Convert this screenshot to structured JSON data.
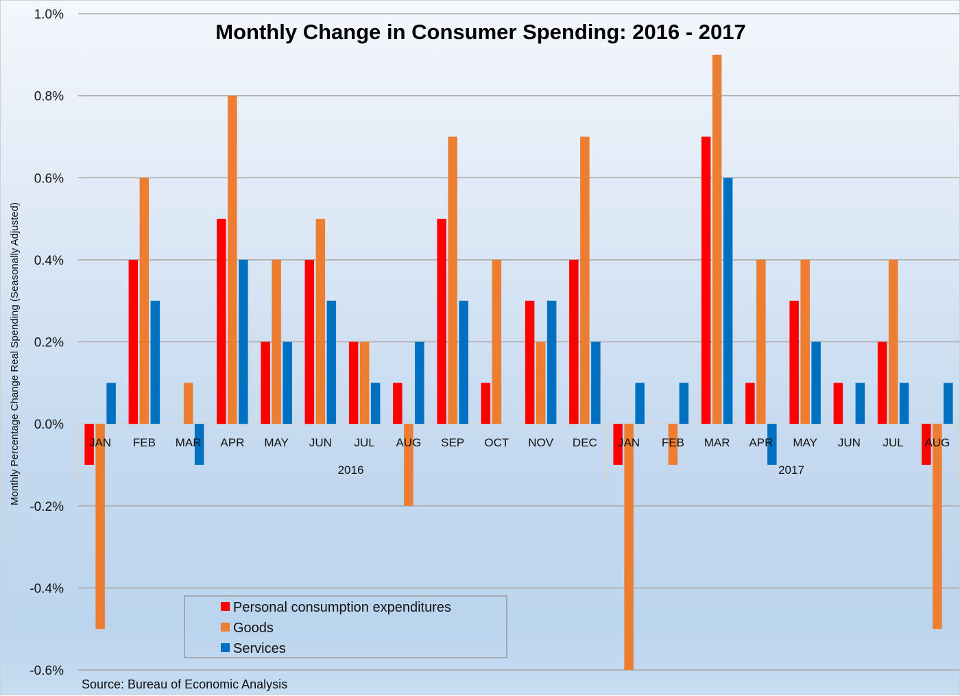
{
  "chart_data": {
    "type": "bar",
    "title": "Monthly Change in Consumer Spending: 2016 - 2017",
    "xlabel": "",
    "ylabel": "Monthly Percentage Change Real Spending (Seasonally Adjusted)",
    "ylim": [
      -0.6,
      1.0
    ],
    "y_ticks": [
      1.0,
      0.8,
      0.6,
      0.4,
      0.2,
      0.0,
      -0.2,
      -0.4,
      -0.6
    ],
    "y_tick_labels": [
      "1.0%",
      "0.8%",
      "0.6%",
      "0.4%",
      "0.2%",
      "0.0%",
      "-0.2%",
      "-0.4%",
      "-0.6%"
    ],
    "grid": true,
    "categories": [
      "JAN",
      "FEB",
      "MAR",
      "APR",
      "MAY",
      "JUN",
      "JUL",
      "AUG",
      "SEP",
      "OCT",
      "NOV",
      "DEC",
      "JAN",
      "FEB",
      "MAR",
      "APR",
      "MAY",
      "JUN",
      "JUL",
      "AUG"
    ],
    "groups": [
      {
        "label": "2016",
        "count": 12
      },
      {
        "label": "2017",
        "count": 8
      }
    ],
    "series": [
      {
        "name": "Personal consumption expenditures",
        "color": "#ff0000",
        "values": [
          -0.1,
          0.4,
          0.0,
          0.5,
          0.2,
          0.4,
          0.2,
          0.1,
          0.5,
          0.1,
          0.3,
          0.4,
          -0.1,
          0.0,
          0.7,
          0.1,
          0.3,
          0.1,
          0.2,
          -0.1
        ]
      },
      {
        "name": "Goods",
        "color": "#ed7d31",
        "values": [
          -0.5,
          0.6,
          0.1,
          0.8,
          0.4,
          0.5,
          0.2,
          -0.2,
          0.7,
          0.4,
          0.2,
          0.7,
          -0.6,
          -0.1,
          0.9,
          0.4,
          0.4,
          0.0,
          0.4,
          -0.5
        ]
      },
      {
        "name": "Services",
        "color": "#0070c0",
        "values": [
          0.1,
          0.3,
          -0.1,
          0.4,
          0.2,
          0.3,
          0.1,
          0.2,
          0.3,
          0.0,
          0.3,
          0.2,
          0.1,
          0.1,
          0.6,
          -0.1,
          0.2,
          0.1,
          0.1,
          0.1
        ]
      }
    ],
    "legend": {
      "position": "bottom-left",
      "entries": [
        "Personal consumption expenditures",
        "Goods",
        "Services"
      ]
    },
    "source": "Source: Bureau of Economic Analysis"
  }
}
